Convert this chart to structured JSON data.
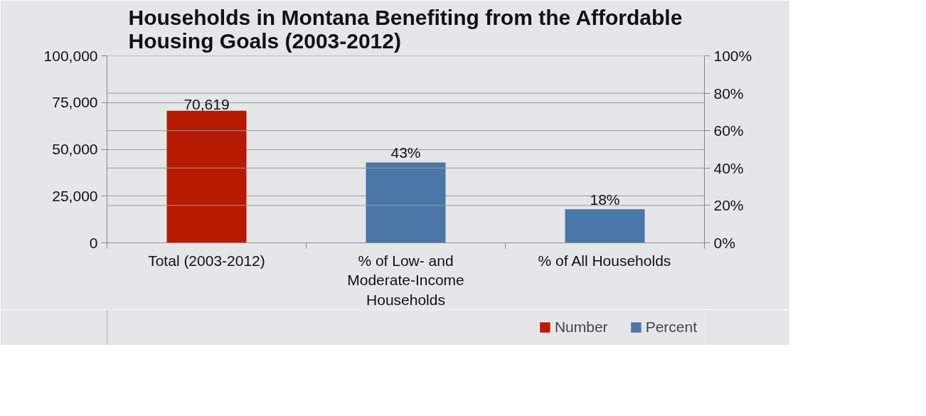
{
  "chart_data": {
    "type": "bar",
    "title": "Households in Montana Benefiting from the Affordable Housing Goals (2003-2012)",
    "categories": [
      "Total (2003-2012)",
      "% of Low- and Moderate-Income Households",
      "% of All Households"
    ],
    "series": [
      {
        "name": "Number",
        "color": "#b81a00",
        "values": [
          70619,
          null,
          null
        ],
        "value_labels": [
          "70,619",
          null,
          null
        ]
      },
      {
        "name": "Percent",
        "color": "#4a76a8",
        "axis": "y2",
        "values": [
          null,
          43,
          18
        ],
        "value_labels": [
          null,
          "43%",
          "18%"
        ]
      }
    ],
    "ylim": [
      0,
      100000
    ],
    "yticks": [
      0,
      {
        "value": 25000,
        "label": "25,000"
      },
      {
        "value": 50000,
        "label": "50,000"
      },
      {
        "value": 75000,
        "label": "75,000"
      },
      {
        "value": 100000,
        "label": "100,000"
      }
    ],
    "y2lim": [
      0,
      100
    ],
    "y2ticks": [
      {
        "value": 0,
        "label": "0%"
      },
      {
        "value": 20,
        "label": "20%"
      },
      {
        "value": 40,
        "label": "40%"
      },
      {
        "value": 60,
        "label": "60%"
      },
      {
        "value": 80,
        "label": "80%"
      },
      {
        "value": 100,
        "label": "100%"
      }
    ],
    "grid": true,
    "legend": "bottom right"
  }
}
